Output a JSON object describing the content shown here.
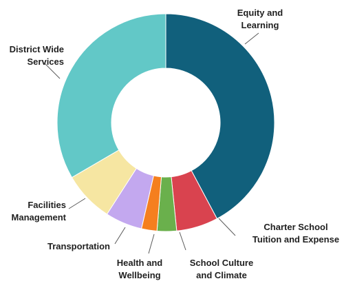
{
  "chart_data": {
    "type": "pie",
    "donut": true,
    "title": "",
    "legend": "none",
    "categories": [
      "Equity and Learning",
      "Charter School Tuition and Expense",
      "School Culture and Climate",
      "Health and Wellbeing",
      "Transportation",
      "Facilities Management",
      "District Wide Services"
    ],
    "values": [
      42.2,
      6.2,
      2.9,
      2.3,
      5.5,
      7.5,
      33.4
    ],
    "unit": "percent (estimated)",
    "colors": [
      "#11607c",
      "#d9434f",
      "#6ab04c",
      "#f57f1f",
      "#c3a8ef",
      "#f6e6a2",
      "#62c8c7"
    ],
    "labels": [
      {
        "lines": [
          "Equity and",
          "Learning"
        ]
      },
      {
        "lines": [
          "Charter School",
          "Tuition and Expense"
        ]
      },
      {
        "lines": [
          "School Culture",
          "and Climate"
        ]
      },
      {
        "lines": [
          "Health and",
          "Wellbeing"
        ]
      },
      {
        "lines": [
          "Transportation"
        ]
      },
      {
        "lines": [
          "Facilities",
          "Management"
        ]
      },
      {
        "lines": [
          "District Wide",
          "Services"
        ]
      }
    ]
  }
}
